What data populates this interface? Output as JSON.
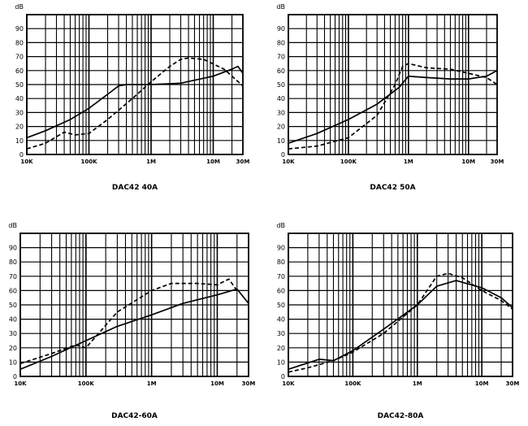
{
  "chart_data": [
    {
      "type": "line",
      "title": "DAC42 40A",
      "ylabel": "dB",
      "xlabel": "",
      "x_scale": "log",
      "xlim": [
        10000,
        30000000
      ],
      "ylim": [
        0,
        100
      ],
      "y_ticks": [
        "0",
        "10",
        "20",
        "30",
        "40",
        "50",
        "60",
        "70",
        "80",
        "90"
      ],
      "x_ticks": [
        {
          "label": "10K",
          "value": 10000
        },
        {
          "label": "100K",
          "value": 100000
        },
        {
          "label": "1M",
          "value": 1000000
        },
        {
          "label": "10M",
          "value": 10000000
        },
        {
          "label": "30M",
          "value": 30000000
        }
      ],
      "series": [
        {
          "name": "solid",
          "style": "solid",
          "x": [
            10000,
            20000,
            50000,
            100000,
            200000,
            300000,
            400000,
            1000000,
            3000000,
            10000000,
            20000000,
            25000000,
            30000000
          ],
          "y": [
            12,
            17,
            25,
            33,
            43,
            49,
            50,
            50,
            51,
            56,
            61,
            63,
            58
          ]
        },
        {
          "name": "dashed",
          "style": "dashed",
          "x": [
            10000,
            20000,
            40000,
            60000,
            100000,
            200000,
            500000,
            1000000,
            2000000,
            3000000,
            4000000,
            7000000,
            15000000,
            30000000
          ],
          "y": [
            4,
            8,
            16,
            14,
            15,
            25,
            40,
            52,
            63,
            68,
            69,
            68,
            61,
            49
          ]
        }
      ]
    },
    {
      "type": "line",
      "title": "DAC42 50A",
      "ylabel": "dB",
      "xlabel": "",
      "x_scale": "log",
      "xlim": [
        10000,
        30000000
      ],
      "ylim": [
        0,
        100
      ],
      "y_ticks": [
        "0",
        "10",
        "20",
        "30",
        "40",
        "50",
        "60",
        "70",
        "80",
        "90"
      ],
      "x_ticks": [
        {
          "label": "10K",
          "value": 10000
        },
        {
          "label": "100K",
          "value": 100000
        },
        {
          "label": "1M",
          "value": 1000000
        },
        {
          "label": "10M",
          "value": 10000000
        },
        {
          "label": "30M",
          "value": 30000000
        }
      ],
      "series": [
        {
          "name": "solid",
          "style": "solid",
          "x": [
            10000,
            30000,
            100000,
            300000,
            700000,
            1000000,
            2000000,
            5000000,
            10000000,
            20000000,
            30000000
          ],
          "y": [
            8,
            15,
            25,
            36,
            48,
            56,
            55,
            54,
            54,
            56,
            60
          ]
        },
        {
          "name": "dashed",
          "style": "dashed",
          "x": [
            10000,
            30000,
            100000,
            300000,
            600000,
            800000,
            1000000,
            2000000,
            5000000,
            10000000,
            20000000,
            30000000
          ],
          "y": [
            4,
            6,
            12,
            28,
            50,
            63,
            65,
            62,
            61,
            58,
            55,
            50
          ]
        }
      ]
    },
    {
      "type": "line",
      "title": "DAC42-60A",
      "ylabel": "dB",
      "xlabel": "",
      "x_scale": "log",
      "xlim": [
        10000,
        30000000
      ],
      "ylim": [
        0,
        100
      ],
      "y_ticks": [
        "0",
        "10",
        "20",
        "30",
        "40",
        "50",
        "60",
        "70",
        "80",
        "90"
      ],
      "x_ticks": [
        {
          "label": "10K",
          "value": 10000
        },
        {
          "label": "100K",
          "value": 100000
        },
        {
          "label": "1M",
          "value": 1000000
        },
        {
          "label": "10M",
          "value": 10000000
        },
        {
          "label": "30M",
          "value": 30000000
        }
      ],
      "series": [
        {
          "name": "solid",
          "style": "solid",
          "x": [
            10000,
            30000,
            100000,
            300000,
            1000000,
            3000000,
            10000000,
            20000000,
            30000000
          ],
          "y": [
            5,
            14,
            25,
            35,
            43,
            51,
            57,
            61,
            51
          ]
        },
        {
          "name": "dashed",
          "style": "dashed",
          "x": [
            10000,
            30000,
            70000,
            100000,
            300000,
            1000000,
            2000000,
            5000000,
            10000000,
            15000000,
            20000000
          ],
          "y": [
            9,
            16,
            22,
            20,
            45,
            60,
            65,
            65,
            64,
            68,
            60
          ]
        }
      ]
    },
    {
      "type": "line",
      "title": "DAC42-80A",
      "ylabel": "dB",
      "xlabel": "",
      "x_scale": "log",
      "xlim": [
        10000,
        30000000
      ],
      "ylim": [
        0,
        100
      ],
      "y_ticks": [
        "0",
        "10",
        "20",
        "30",
        "40",
        "50",
        "60",
        "70",
        "80",
        "90"
      ],
      "x_ticks": [
        {
          "label": "10K",
          "value": 10000
        },
        {
          "label": "100K",
          "value": 100000
        },
        {
          "label": "1M",
          "value": 1000000
        },
        {
          "label": "10M",
          "value": 10000000
        },
        {
          "label": "30M",
          "value": 30000000
        }
      ],
      "series": [
        {
          "name": "solid",
          "style": "solid",
          "x": [
            10000,
            30000,
            50000,
            100000,
            300000,
            1000000,
            2000000,
            4000000,
            10000000,
            20000000,
            30000000
          ],
          "y": [
            5,
            12,
            11,
            18,
            33,
            50,
            63,
            67,
            62,
            55,
            48
          ]
        },
        {
          "name": "dashed",
          "style": "dashed",
          "x": [
            10000,
            20000,
            50000,
            100000,
            300000,
            1000000,
            2000000,
            3000000,
            5000000,
            10000000,
            20000000,
            30000000
          ],
          "y": [
            3,
            6,
            11,
            17,
            30,
            50,
            70,
            72,
            69,
            60,
            53,
            47
          ]
        }
      ]
    }
  ]
}
